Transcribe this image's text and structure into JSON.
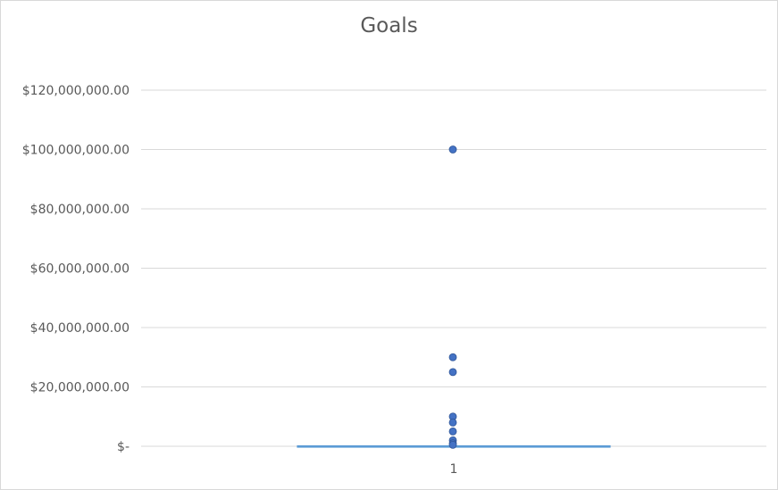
{
  "chart_data": {
    "type": "box",
    "title": "Goals",
    "categories": [
      "1"
    ],
    "y_ticks": [
      "$-",
      "$20,000,000.00",
      "$40,000,000.00",
      "$60,000,000.00",
      "$80,000,000.00",
      "$100,000,000.00",
      "$120,000,000.00"
    ],
    "ylim": [
      0,
      120000000
    ],
    "grid": true,
    "box": {
      "min": 0,
      "q1": 0,
      "median": 0,
      "q3": 0,
      "max": 0
    },
    "outliers": [
      100000000,
      30000000,
      25000000,
      10000000,
      8000000,
      5000000,
      2000000,
      1000000,
      500000
    ],
    "colors": {
      "marker": "#4472c4",
      "box": "#5b9bd5",
      "grid": "#d9d9d9",
      "text": "#595959"
    }
  }
}
